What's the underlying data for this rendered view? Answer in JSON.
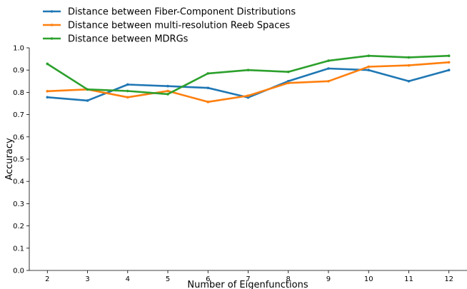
{
  "chart_data": {
    "type": "line",
    "x": [
      2,
      3,
      4,
      5,
      6,
      7,
      8,
      9,
      10,
      11,
      12
    ],
    "xlabel": "Number of Eigenfunctions",
    "ylabel": "Accuracy",
    "xlim": [
      1.55,
      12.45
    ],
    "ylim": [
      0.0,
      1.0
    ],
    "yticks": [
      "0.0",
      "0.1",
      "0.2",
      "0.3",
      "0.4",
      "0.5",
      "0.6",
      "0.7",
      "0.8",
      "0.9",
      "1.0"
    ],
    "xticks": [
      "2",
      "3",
      "4",
      "5",
      "6",
      "7",
      "8",
      "9",
      "10",
      "11",
      "12"
    ],
    "grid": false,
    "legend_position": "top-left, outside plot",
    "series": [
      {
        "name": "Distance between Fiber-Component Distributions",
        "color": "#1f77b4",
        "values": [
          0.778,
          0.763,
          0.835,
          0.828,
          0.82,
          0.777,
          0.85,
          0.907,
          0.9,
          0.85,
          0.9
        ]
      },
      {
        "name": "Distance between multi-resolution Reeb Spaces",
        "color": "#ff7f0e",
        "values": [
          0.805,
          0.813,
          0.778,
          0.806,
          0.757,
          0.785,
          0.842,
          0.85,
          0.915,
          0.921,
          0.935
        ]
      },
      {
        "name": "Distance between MDRGs",
        "color": "#2ca02c",
        "values": [
          0.928,
          0.813,
          0.806,
          0.792,
          0.885,
          0.9,
          0.892,
          0.942,
          0.964,
          0.957,
          0.964
        ]
      }
    ]
  }
}
